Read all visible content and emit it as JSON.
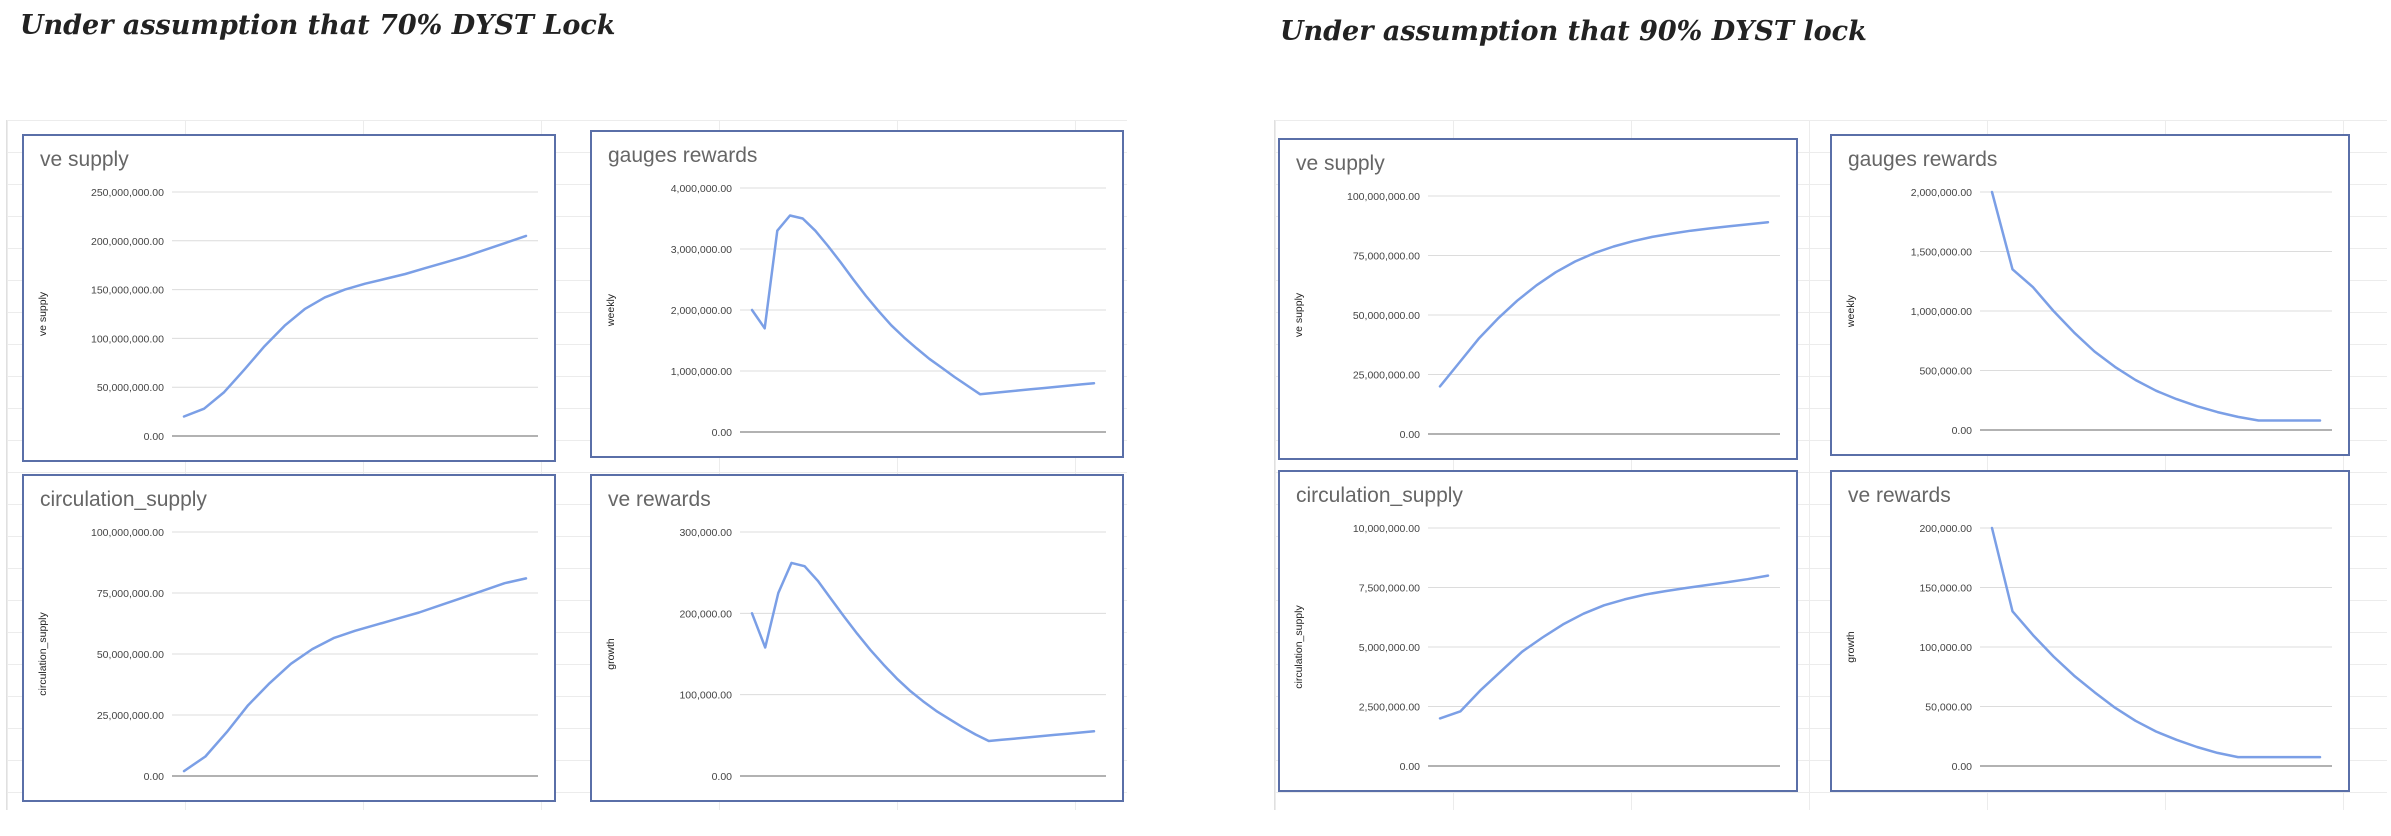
{
  "headings": {
    "left": "Under assumption that 70% DYST Lock",
    "right": "Under assumption that 90% DYST lock"
  },
  "chart_data": [
    {
      "id": "c1",
      "scenario": "70% DYST Lock",
      "type": "line",
      "title": "ve supply",
      "ylabel": "ve supply",
      "xlabel": "",
      "ylim": [
        0,
        250000000
      ],
      "yticks": [
        "0.00",
        "50,000,000.00",
        "100,000,000.00",
        "150,000,000.00",
        "200,000,000.00",
        "250,000,000.00"
      ],
      "series": [
        {
          "color": "#7b9fe6",
          "values": [
            20000000,
            28000000,
            45000000,
            68000000,
            92000000,
            113000000,
            130000000,
            142000000,
            150000000,
            156000000,
            161000000,
            166000000,
            172000000,
            178000000,
            184000000,
            191000000,
            198000000,
            205000000
          ]
        }
      ]
    },
    {
      "id": "c2",
      "scenario": "70% DYST Lock",
      "type": "line",
      "title": "gauges rewards",
      "ylabel": "weekly",
      "xlabel": "",
      "ylim": [
        0,
        4000000
      ],
      "yticks": [
        "0.00",
        "1,000,000.00",
        "2,000,000.00",
        "3,000,000.00",
        "4,000,000.00"
      ],
      "series": [
        {
          "color": "#7b9fe6",
          "values": [
            2000000,
            1700000,
            3300000,
            3550000,
            3500000,
            3300000,
            3050000,
            2780000,
            2500000,
            2230000,
            1980000,
            1750000,
            1550000,
            1370000,
            1200000,
            1050000,
            900000,
            760000,
            620000,
            640000,
            660000,
            680000,
            700000,
            720000,
            740000,
            760000,
            780000,
            800000
          ]
        }
      ]
    },
    {
      "id": "c3",
      "scenario": "70% DYST Lock",
      "type": "line",
      "title": "circulation_supply",
      "ylabel": "circulation_supply",
      "xlabel": "",
      "ylim": [
        0,
        100000000
      ],
      "yticks": [
        "0.00",
        "25,000,000.00",
        "50,000,000.00",
        "75,000,000.00",
        "100,000,000.00"
      ],
      "series": [
        {
          "color": "#7b9fe6",
          "values": [
            2000000,
            8000000,
            18000000,
            29000000,
            38000000,
            46000000,
            52000000,
            56500000,
            59500000,
            62000000,
            64500000,
            67000000,
            70000000,
            73000000,
            76000000,
            79000000,
            81000000
          ]
        }
      ]
    },
    {
      "id": "c4",
      "scenario": "70% DYST Lock",
      "type": "line",
      "title": "ve rewards",
      "ylabel": "growth",
      "xlabel": "",
      "ylim": [
        0,
        300000
      ],
      "yticks": [
        "0.00",
        "100,000.00",
        "200,000.00",
        "300,000.00"
      ],
      "series": [
        {
          "color": "#7b9fe6",
          "values": [
            200000,
            158000,
            225000,
            262000,
            258000,
            240000,
            218000,
            196000,
            175000,
            155000,
            137000,
            120000,
            105000,
            92000,
            80000,
            70000,
            60000,
            51000,
            43000,
            44500,
            46000,
            47500,
            49000,
            50500,
            52000,
            53500,
            55000
          ]
        }
      ]
    },
    {
      "id": "c5",
      "scenario": "90% DYST lock",
      "type": "line",
      "title": "ve supply",
      "ylabel": "ve supply",
      "xlabel": "",
      "ylim": [
        0,
        100000000
      ],
      "yticks": [
        "0.00",
        "25,000,000.00",
        "50,000,000.00",
        "75,000,000.00",
        "100,000,000.00"
      ],
      "series": [
        {
          "color": "#7b9fe6",
          "values": [
            20000000,
            30000000,
            40000000,
            48500000,
            56000000,
            62500000,
            68000000,
            72500000,
            76000000,
            78800000,
            81000000,
            82800000,
            84200000,
            85400000,
            86400000,
            87300000,
            88100000,
            89000000
          ]
        }
      ]
    },
    {
      "id": "c6",
      "scenario": "90% DYST lock",
      "type": "line",
      "title": "gauges rewards",
      "ylabel": "weekly",
      "xlabel": "",
      "ylim": [
        0,
        2000000
      ],
      "yticks": [
        "0.00",
        "500,000.00",
        "1,000,000.00",
        "1,500,000.00",
        "2,000,000.00"
      ],
      "series": [
        {
          "color": "#7b9fe6",
          "values": [
            2000000,
            1350000,
            1200000,
            1000000,
            820000,
            660000,
            530000,
            420000,
            330000,
            260000,
            200000,
            150000,
            110000,
            80000,
            80000,
            80000,
            80000
          ]
        }
      ]
    },
    {
      "id": "c7",
      "scenario": "90% DYST lock",
      "type": "line",
      "title": "circulation_supply",
      "ylabel": "circulation_supply",
      "xlabel": "",
      "ylim": [
        0,
        10000000
      ],
      "yticks": [
        "0.00",
        "2,500,000.00",
        "5,000,000.00",
        "7,500,000.00",
        "10,000,000.00"
      ],
      "series": [
        {
          "color": "#7b9fe6",
          "values": [
            2000000,
            2300000,
            3200000,
            4000000,
            4800000,
            5400000,
            5950000,
            6400000,
            6750000,
            7000000,
            7200000,
            7350000,
            7480000,
            7600000,
            7720000,
            7850000,
            8000000
          ]
        }
      ]
    },
    {
      "id": "c8",
      "scenario": "90% DYST lock",
      "type": "line",
      "title": "ve rewards",
      "ylabel": "growth",
      "xlabel": "",
      "ylim": [
        0,
        200000
      ],
      "yticks": [
        "0.00",
        "50,000.00",
        "100,000.00",
        "150,000.00",
        "200,000.00"
      ],
      "series": [
        {
          "color": "#7b9fe6",
          "values": [
            200000,
            130000,
            110000,
            92000,
            76000,
            62000,
            49000,
            38000,
            29000,
            22000,
            16000,
            11000,
            7500,
            7500,
            7500,
            7500,
            7500
          ]
        }
      ]
    }
  ]
}
